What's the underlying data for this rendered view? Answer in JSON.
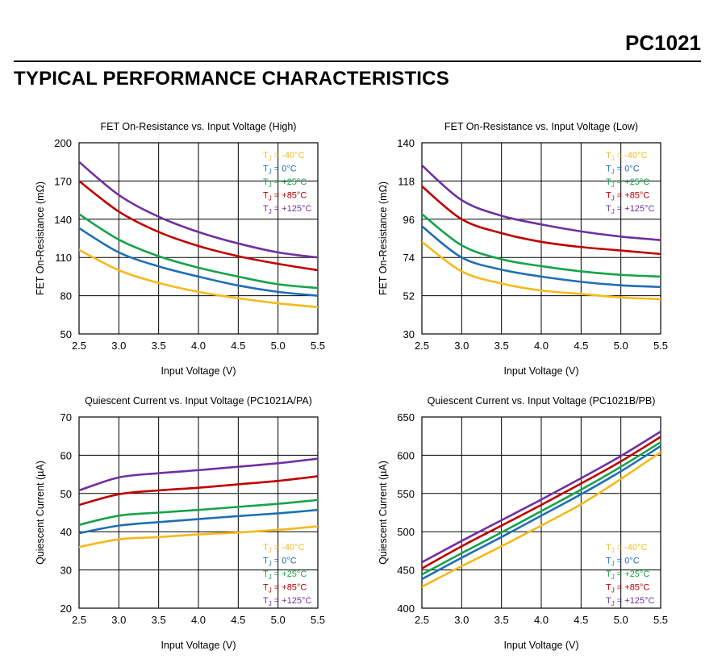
{
  "header": {
    "part_number": "PC1021",
    "section_title": "TYPICAL PERFORMANCE CHARACTERISTICS"
  },
  "legend_items": [
    {
      "label": "T",
      "sub": "J",
      "suffix": " = -40°C",
      "color": "#f5b91a"
    },
    {
      "label": "T",
      "sub": "J",
      "suffix": " = 0°C",
      "color": "#1f6fb4"
    },
    {
      "label": "T",
      "sub": "J",
      "suffix": " = +25°C",
      "color": "#17a34a"
    },
    {
      "label": "T",
      "sub": "J",
      "suffix": " = +85°C",
      "color": "#c00000"
    },
    {
      "label": "T",
      "sub": "J",
      "suffix": " = +125°C",
      "color": "#7030a0"
    }
  ],
  "chart_data": [
    {
      "type": "line",
      "title": "FET On-Resistance vs. Input Voltage (High)",
      "xlabel": "Input Voltage (V)",
      "ylabel": "FET On-Resistance (mΩ)",
      "xlim": [
        2.5,
        5.5
      ],
      "ylim": [
        50,
        200
      ],
      "xticks": [
        "2.5",
        "3.0",
        "3.5",
        "4.0",
        "4.5",
        "5.0",
        "5.5"
      ],
      "yticks": [
        "50",
        "80",
        "110",
        "140",
        "170",
        "200"
      ],
      "grid": true,
      "legend_position": "top-right",
      "x": [
        2.5,
        3.0,
        3.5,
        4.0,
        4.5,
        5.0,
        5.5
      ],
      "series": [
        {
          "name": "TJ = -40°C",
          "color": "#f5b91a",
          "values": [
            116,
            100,
            90,
            83,
            78,
            74,
            71
          ]
        },
        {
          "name": "TJ = 0°C",
          "color": "#1f6fb4",
          "values": [
            133,
            114,
            103,
            95,
            88,
            83,
            80
          ]
        },
        {
          "name": "TJ = +25°C",
          "color": "#17a34a",
          "values": [
            144,
            124,
            111,
            102,
            95,
            89,
            86
          ]
        },
        {
          "name": "TJ = +85°C",
          "color": "#c00000",
          "values": [
            170,
            146,
            130,
            119,
            111,
            105,
            100
          ]
        },
        {
          "name": "TJ = +125°C",
          "color": "#7030a0",
          "values": [
            185,
            159,
            142,
            130,
            121,
            114,
            110
          ]
        }
      ]
    },
    {
      "type": "line",
      "title": "FET On-Resistance vs. Input Voltage (Low)",
      "xlabel": "Input Voltage (V)",
      "ylabel": "FET On-Resistance (mΩ)",
      "xlim": [
        2.5,
        5.5
      ],
      "ylim": [
        30,
        140
      ],
      "xticks": [
        "2.5",
        "3.0",
        "3.5",
        "4.0",
        "4.5",
        "5.0",
        "5.5"
      ],
      "yticks": [
        "30",
        "52",
        "74",
        "96",
        "118",
        "140"
      ],
      "grid": true,
      "legend_position": "top-right",
      "x": [
        2.5,
        3.0,
        3.5,
        4.0,
        4.5,
        5.0,
        5.5
      ],
      "series": [
        {
          "name": "TJ = -40°C",
          "color": "#f5b91a",
          "values": [
            83,
            66,
            59,
            55,
            53,
            51,
            50
          ]
        },
        {
          "name": "TJ = 0°C",
          "color": "#1f6fb4",
          "values": [
            92,
            74,
            67,
            63,
            60,
            58,
            57
          ]
        },
        {
          "name": "TJ = +25°C",
          "color": "#17a34a",
          "values": [
            99,
            81,
            73,
            69,
            66,
            64,
            63
          ]
        },
        {
          "name": "TJ = +85°C",
          "color": "#c00000",
          "values": [
            115,
            96,
            88,
            83,
            80,
            78,
            76
          ]
        },
        {
          "name": "TJ = +125°C",
          "color": "#7030a0",
          "values": [
            127,
            107,
            98,
            93,
            89,
            86,
            84
          ]
        }
      ]
    },
    {
      "type": "line",
      "title": "Quiescent Current vs. Input Voltage (PC1021A/PA)",
      "xlabel": "Input Voltage (V)",
      "ylabel": "Quiescent Current (µA)",
      "xlim": [
        2.5,
        5.5
      ],
      "ylim": [
        20,
        70
      ],
      "xticks": [
        "2.5",
        "3.0",
        "3.5",
        "4.0",
        "4.5",
        "5.0",
        "5.5"
      ],
      "yticks": [
        "20",
        "30",
        "40",
        "50",
        "60",
        "70"
      ],
      "grid": true,
      "legend_position": "bottom-right",
      "x": [
        2.5,
        3.0,
        3.5,
        4.0,
        4.5,
        5.0,
        5.5
      ],
      "series": [
        {
          "name": "TJ = -40°C",
          "color": "#f5b91a",
          "values": [
            36,
            38,
            38.6,
            39.3,
            39.8,
            40.5,
            41.4
          ]
        },
        {
          "name": "TJ = 0°C",
          "color": "#1f6fb4",
          "values": [
            39.6,
            41.6,
            42.5,
            43.3,
            44.1,
            44.8,
            45.7
          ]
        },
        {
          "name": "TJ = +25°C",
          "color": "#17a34a",
          "values": [
            41.8,
            44.2,
            45,
            45.7,
            46.5,
            47.3,
            48.3
          ]
        },
        {
          "name": "TJ = +85°C",
          "color": "#c00000",
          "values": [
            47,
            49.8,
            50.8,
            51.5,
            52.4,
            53.3,
            54.5
          ]
        },
        {
          "name": "TJ = +125°C",
          "color": "#7030a0",
          "values": [
            50.8,
            54.2,
            55.3,
            56.1,
            57,
            57.9,
            59.1
          ]
        }
      ]
    },
    {
      "type": "line",
      "title": "Quiescent Current vs. Input Voltage (PC1021B/PB)",
      "xlabel": "Input Voltage (V)",
      "ylabel": "Quiescent Current (µA)",
      "xlim": [
        2.5,
        5.5
      ],
      "ylim": [
        400,
        650
      ],
      "xticks": [
        "2.5",
        "3.0",
        "3.5",
        "4.0",
        "4.5",
        "5.0",
        "5.5"
      ],
      "yticks": [
        "400",
        "450",
        "500",
        "550",
        "600",
        "650"
      ],
      "grid": true,
      "legend_position": "bottom-right",
      "x": [
        2.5,
        3.0,
        3.5,
        4.0,
        4.5,
        5.0,
        5.5
      ],
      "series": [
        {
          "name": "TJ = -40°C",
          "color": "#f5b91a",
          "values": [
            428,
            455,
            481,
            508,
            536,
            569,
            604
          ]
        },
        {
          "name": "TJ = 0°C",
          "color": "#1f6fb4",
          "values": [
            438,
            466,
            493,
            521,
            549,
            579,
            612
          ]
        },
        {
          "name": "TJ = +25°C",
          "color": "#17a34a",
          "values": [
            444,
            472,
            499,
            527,
            555,
            585,
            617
          ]
        },
        {
          "name": "TJ = +85°C",
          "color": "#c00000",
          "values": [
            452,
            481,
            508,
            535,
            563,
            592,
            624
          ]
        },
        {
          "name": "TJ = +125°C",
          "color": "#7030a0",
          "values": [
            460,
            488,
            515,
            542,
            570,
            599,
            631
          ]
        }
      ]
    }
  ]
}
